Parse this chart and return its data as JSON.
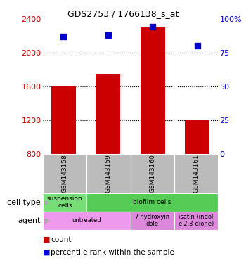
{
  "title": "GDS2753 / 1766138_s_at",
  "samples": [
    "GSM143158",
    "GSM143159",
    "GSM143160",
    "GSM143161"
  ],
  "counts": [
    1600,
    1750,
    2300,
    1200
  ],
  "percentile_ranks": [
    87,
    88,
    94,
    80
  ],
  "ylim_left": [
    800,
    2400
  ],
  "ylim_right": [
    0,
    100
  ],
  "yticks_left": [
    800,
    1200,
    1600,
    2000,
    2400
  ],
  "yticks_right": [
    0,
    25,
    50,
    75,
    100
  ],
  "bar_color": "#cc0000",
  "dot_color": "#0000cc",
  "bar_bottom": 800,
  "cell_type_spans": [
    {
      "label": "suspension\ncells",
      "start": 0,
      "end": 1,
      "color": "#77dd77"
    },
    {
      "label": "biofilm cells",
      "start": 1,
      "end": 4,
      "color": "#55cc55"
    }
  ],
  "agent_spans": [
    {
      "label": "untreated",
      "start": 0,
      "end": 2,
      "color": "#ee99ee"
    },
    {
      "label": "7-hydroxyin\ndole",
      "start": 2,
      "end": 3,
      "color": "#dd88dd"
    },
    {
      "label": "isatin (indol\ne-2,3-dione)",
      "start": 3,
      "end": 4,
      "color": "#dd88dd"
    }
  ],
  "cell_type_label": "cell type",
  "agent_label": "agent",
  "legend_count_color": "#cc0000",
  "legend_pct_color": "#0000cc",
  "left_axis_color": "#cc0000",
  "right_axis_color": "#0000cc",
  "bg_color": "#ffffff",
  "sample_box_color": "#bbbbbb",
  "gridline_color": "#000000",
  "pct_marker_size": 30
}
